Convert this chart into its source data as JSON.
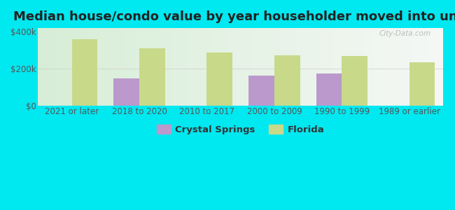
{
  "title": "Median house/condo value by year householder moved into unit",
  "categories": [
    "2021 or later",
    "2018 to 2020",
    "2010 to 2017",
    "2000 to 2009",
    "1990 to 1999",
    "1989 or earlier"
  ],
  "crystal_springs": [
    null,
    148000,
    null,
    163000,
    173000,
    null
  ],
  "florida": [
    358000,
    312000,
    288000,
    272000,
    268000,
    233000
  ],
  "crystal_springs_color": "#bb99cc",
  "florida_color": "#c8d98a",
  "background_outer": "#00e8f0",
  "background_inner_left": "#d8eec8",
  "background_inner_right": "#f0f8ee",
  "yticks": [
    0,
    200000,
    400000
  ],
  "ytick_labels": [
    "$0",
    "$200k",
    "$400k"
  ],
  "ylim": [
    0,
    420000
  ],
  "bar_width": 0.38,
  "legend_crystal": "Crystal Springs",
  "legend_florida": "Florida",
  "watermark": "City-Data.com",
  "title_fontsize": 13,
  "tick_fontsize": 8.5,
  "legend_fontsize": 9.5
}
